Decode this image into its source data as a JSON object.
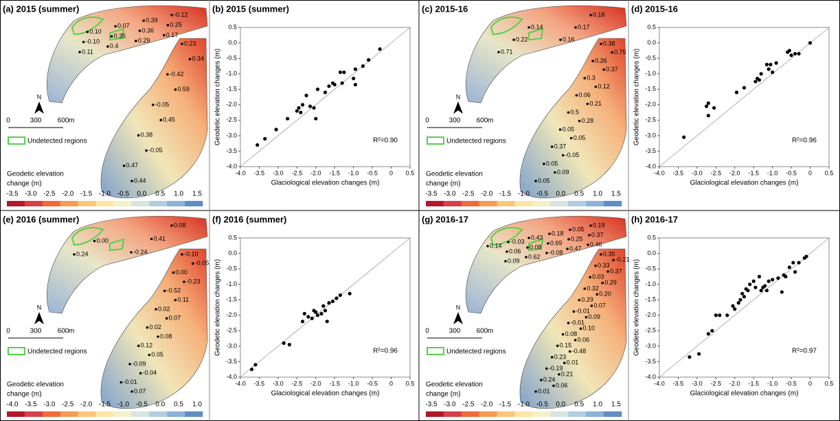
{
  "chart_data": [
    {
      "type": "scatter",
      "title": "(b) 2015 (summer)",
      "x_label": "Glaciological elevation changes (m)",
      "y_label": "Geodetic elevation changes (m)",
      "annotation": "R²=0.90",
      "color": "#000000",
      "x": [
        -3.55,
        -3.35,
        -3.05,
        -2.75,
        -2.5,
        -2.45,
        -2.4,
        -2.35,
        -2.25,
        -2.15,
        -2.05,
        -2.0,
        -1.95,
        -1.75,
        -1.65,
        -1.55,
        -1.5,
        -1.35,
        -1.3,
        -1.25,
        -1.0,
        -0.95,
        -0.95,
        -0.75,
        -0.6,
        -0.3
      ],
      "y": [
        -3.3,
        -3.1,
        -2.8,
        -2.45,
        -2.2,
        -2.1,
        -2.25,
        -2.0,
        -1.7,
        -2.05,
        -2.1,
        -2.45,
        -1.5,
        -1.6,
        -1.4,
        -1.3,
        -1.35,
        -0.95,
        -1.3,
        -0.95,
        -1.15,
        -0.85,
        -1.35,
        -0.75,
        -0.55,
        -0.2
      ],
      "xlim": [
        -4,
        0.5
      ],
      "ylim": [
        -4,
        0.5
      ],
      "xticks": [
        {
          "value": -4,
          "label": "-4.0"
        },
        {
          "value": -3.5,
          "label": "-3.5"
        },
        {
          "value": -3,
          "label": "-3.0"
        },
        {
          "value": -2.5,
          "label": "-2.5"
        },
        {
          "value": -2,
          "label": "-2.0"
        },
        {
          "value": -1.5,
          "label": "-1.5"
        },
        {
          "value": -1,
          "label": "-1.0"
        },
        {
          "value": -0.5,
          "label": "-0.5"
        },
        0,
        0.5
      ],
      "yticks": [
        {
          "value": -4,
          "label": "-4.0"
        },
        {
          "value": -3.5,
          "label": "-3.5"
        },
        {
          "value": -3,
          "label": "-3.0"
        },
        {
          "value": -2.5,
          "label": "-2.5"
        },
        {
          "value": -2,
          "label": "-2.0"
        },
        {
          "value": -1.5,
          "label": "-1.5"
        },
        {
          "value": -1,
          "label": "-1.0"
        },
        {
          "value": -0.5,
          "label": "-0.5"
        },
        {
          "value": 0,
          "label": "0.0"
        },
        0.5
      ]
    },
    {
      "type": "scatter",
      "title": "(d) 2015-16",
      "x_label": "Glaciological elevation changes (m)",
      "y_label": "Geodetic elevation changes (m)",
      "annotation": "R²=0.96",
      "color": "#000000",
      "x": [
        -3.35,
        -2.75,
        -2.7,
        -2.7,
        -2.55,
        -1.95,
        -1.75,
        -1.45,
        -1.4,
        -1.35,
        -1.3,
        -1.15,
        -1.1,
        -1.05,
        -1.0,
        -0.9,
        -0.6,
        -0.5,
        -0.4,
        -0.3,
        0.0,
        -0.55
      ],
      "y": [
        -3.05,
        -2.05,
        -1.95,
        -2.35,
        -2.1,
        -1.6,
        -1.45,
        -1.25,
        -1.15,
        -1.2,
        -1.0,
        -0.7,
        -0.85,
        -0.7,
        -0.95,
        -0.65,
        -0.3,
        -0.4,
        -0.35,
        -0.35,
        0.0,
        -0.25
      ],
      "xlim": [
        -4,
        0.5
      ],
      "ylim": [
        -4,
        0.5
      ],
      "xticks": [
        {
          "value": -4,
          "label": "-4.0"
        },
        {
          "value": -3.5,
          "label": "-3.5"
        },
        {
          "value": -3,
          "label": "-3.0"
        },
        {
          "value": -2.5,
          "label": "-2.5"
        },
        {
          "value": -2,
          "label": "-2.0"
        },
        {
          "value": -1.5,
          "label": "-1.5"
        },
        {
          "value": -1,
          "label": "-1.0"
        },
        {
          "value": -0.5,
          "label": "-0.5"
        },
        0,
        0.5
      ],
      "yticks": [
        {
          "value": -4,
          "label": "-4.0"
        },
        {
          "value": -3.5,
          "label": "-3.5"
        },
        {
          "value": -3,
          "label": "-3.0"
        },
        {
          "value": -2.5,
          "label": "-2.5"
        },
        {
          "value": -2,
          "label": "-2.0"
        },
        {
          "value": -1.5,
          "label": "-1.5"
        },
        {
          "value": -1,
          "label": "-1.0"
        },
        {
          "value": -0.5,
          "label": "-0.5"
        },
        {
          "value": 0,
          "label": "0.0"
        },
        0.5
      ]
    },
    {
      "type": "scatter",
      "title": "(f) 2016 (summer)",
      "x_label": "Glaciological elevation changes (m)",
      "y_label": "Geodetic elevation changes (m)",
      "annotation": "R²=0.96",
      "color": "#000000",
      "x": [
        -3.7,
        -3.6,
        -2.85,
        -2.7,
        -2.35,
        -2.3,
        -2.2,
        -2.1,
        -2.05,
        -1.95,
        -1.85,
        -1.75,
        -1.7,
        -1.65,
        -1.55,
        -1.45,
        -1.35,
        -1.1,
        -2.0,
        -1.8
      ],
      "y": [
        -3.75,
        -3.6,
        -2.9,
        -2.95,
        -2.2,
        -1.95,
        -2.05,
        -2.1,
        -1.85,
        -2.0,
        -1.95,
        -1.85,
        -2.2,
        -1.6,
        -1.55,
        -1.45,
        -1.35,
        -1.3,
        -1.9,
        -1.7
      ],
      "xlim": [
        -4,
        0.5
      ],
      "ylim": [
        -4,
        0.5
      ],
      "xticks": [
        {
          "value": -4,
          "label": "-4.0"
        },
        {
          "value": -3.5,
          "label": "-3.5"
        },
        {
          "value": -3,
          "label": "-3.0"
        },
        {
          "value": -2.5,
          "label": "-2.5"
        },
        {
          "value": -2,
          "label": "-2.0"
        },
        {
          "value": -1.5,
          "label": "-1.5"
        },
        {
          "value": -1,
          "label": "-1.0"
        },
        {
          "value": -0.5,
          "label": "-0.5"
        },
        0,
        0.5
      ],
      "yticks": [
        {
          "value": -4,
          "label": "-4.0"
        },
        {
          "value": -3.5,
          "label": "-3.5"
        },
        {
          "value": -3,
          "label": "-3.0"
        },
        {
          "value": -2.5,
          "label": "-2.5"
        },
        {
          "value": -2,
          "label": "-2.0"
        },
        {
          "value": -1.5,
          "label": "-1.5"
        },
        {
          "value": -1,
          "label": "-1.0"
        },
        {
          "value": -0.5,
          "label": "-0.5"
        },
        {
          "value": 0,
          "label": "0.0"
        },
        0.5
      ]
    },
    {
      "type": "scatter",
      "title": "(h) 2016-17",
      "x_label": "Glaciological elevation changes (m)",
      "y_label": "Geodetic elevation changes (m)",
      "annotation": "R²=0.97",
      "color": "#000000",
      "x": [
        -3.2,
        -2.95,
        -2.7,
        -2.6,
        -2.4,
        -2.2,
        -2.05,
        -2.0,
        -1.85,
        -1.8,
        -1.75,
        -1.7,
        -1.65,
        -1.6,
        -1.5,
        -1.45,
        -1.35,
        -1.3,
        -1.25,
        -1.2,
        -1.15,
        -1.1,
        -1.0,
        -0.85,
        -0.75,
        -0.7,
        -0.65,
        -0.55,
        -0.45,
        -0.4,
        -0.3,
        -0.15,
        -0.1,
        -2.5,
        -1.9
      ],
      "y": [
        -3.35,
        -3.25,
        -2.6,
        -2.5,
        -2.0,
        -2.0,
        -1.7,
        -1.8,
        -1.5,
        -1.3,
        -1.4,
        -1.15,
        -1.2,
        -1.0,
        -0.9,
        -1.1,
        -0.75,
        -1.2,
        -1.1,
        -1.05,
        -1.2,
        -0.9,
        -0.85,
        -0.8,
        -1.25,
        -0.7,
        -0.75,
        -0.45,
        -0.3,
        -0.6,
        -0.3,
        -0.15,
        -0.1,
        -2.0,
        -1.6
      ],
      "xlim": [
        -4,
        0.5
      ],
      "ylim": [
        -4,
        0.5
      ],
      "xticks": [
        {
          "value": -4,
          "label": "-4.0"
        },
        {
          "value": -3.5,
          "label": "-3.5"
        },
        {
          "value": -3,
          "label": "-3.0"
        },
        {
          "value": -2.5,
          "label": "-2.5"
        },
        {
          "value": -2,
          "label": "-2.0"
        },
        {
          "value": -1.5,
          "label": "-1.5"
        },
        {
          "value": -1,
          "label": "-1.0"
        },
        {
          "value": -0.5,
          "label": "-0.5"
        },
        0,
        0.5
      ],
      "yticks": [
        {
          "value": -4,
          "label": "-4.0"
        },
        {
          "value": -3.5,
          "label": "-3.5"
        },
        {
          "value": -3,
          "label": "-3.0"
        },
        {
          "value": -2.5,
          "label": "-2.5"
        },
        {
          "value": -2,
          "label": "-2.0"
        },
        {
          "value": -1.5,
          "label": "-1.5"
        },
        {
          "value": -1,
          "label": "-1.0"
        },
        {
          "value": -0.5,
          "label": "-0.5"
        },
        {
          "value": 0,
          "label": "0.0"
        },
        0.5
      ]
    }
  ],
  "maps": [
    {
      "title": "(a) 2015 (summer)",
      "north": "N",
      "scale_labels": [
        "0",
        "300",
        "600"
      ],
      "scale_unit": "m",
      "legend": "Undetected regions",
      "colorbar_title": [
        "Geodetic elevation",
        "change (m)"
      ],
      "colorbar_labels": [
        "-3.5",
        "-3.0",
        "-2.5",
        "-2.0",
        "-1.5",
        "-1.0",
        "-0.5",
        "0.0",
        "0.5",
        "1.0",
        "1.5"
      ],
      "upper_labels": [
        "-0.12",
        "0.25",
        "0.17",
        "0.39",
        "0.36",
        "0.29",
        "0.07",
        "0.35",
        "0.4",
        "0.10",
        "-0.10",
        "0.11"
      ],
      "lower_labels": [
        "0.23",
        "0.34",
        "-0.42",
        "0.59",
        "-0.05",
        "0.45",
        "0.38",
        "-0.05",
        "0.47",
        "0.44"
      ]
    },
    {
      "title": "(c) 2015-16",
      "north": "N",
      "scale_labels": [
        "0",
        "300",
        "600"
      ],
      "scale_unit": "m",
      "legend": "Undetected regions",
      "colorbar_title": [
        "Geodetic elevation",
        "change (m)"
      ],
      "colorbar_labels": [
        "-3.5",
        "-3.0",
        "-2.5",
        "-2.0",
        "-1.5",
        "-1.0",
        "-0.5",
        "0.0",
        "0.5",
        "1.0",
        "1.5"
      ],
      "upper_labels": [
        "0.18",
        "0.17",
        "0.16",
        "0.14",
        "0.22",
        "0.71"
      ],
      "lower_labels": [
        "0.38",
        "0.75",
        "0.26",
        "0.37",
        "0.3",
        "0.12",
        "0.06",
        "0.21",
        "0.5",
        "0.28",
        "0.05",
        "0.05",
        "0.37",
        "-0.05",
        "0.05",
        "0.09",
        "0.05"
      ]
    },
    {
      "title": "(e) 2016 (summer)",
      "north": "N",
      "scale_labels": [
        "0",
        "300",
        "600"
      ],
      "scale_unit": "m",
      "legend": "Undetected regions",
      "colorbar_title": [
        "Geodetic elevation",
        "change (m)"
      ],
      "colorbar_labels": [
        "-4.0",
        "-3.5",
        "-3.0",
        "-2.5",
        "-2.0",
        "-1.5",
        "-1.0",
        "-0.5",
        "0.0",
        "0.5",
        "1.0"
      ],
      "upper_labels": [
        "0.08",
        "0.41",
        "-0.24",
        "0.00",
        "0.24"
      ],
      "lower_labels": [
        "-0.10",
        "-0.05",
        "0.00",
        "-0.23",
        "-0.52",
        "0.11",
        "0.02",
        "0.07",
        "0.02",
        "0.08",
        "0.12",
        "0.05",
        "-0.09",
        "-0.04",
        "-0.01",
        "0.07"
      ]
    },
    {
      "title": "(g) 2016-17",
      "north": "N",
      "scale_labels": [
        "0",
        "300",
        "600"
      ],
      "scale_unit": "m",
      "legend": "Undetected regions",
      "colorbar_title": [
        "Geodetic elevation",
        "change (m)"
      ],
      "colorbar_labels": [
        "-3.5",
        "-3.0",
        "-2.5",
        "-2.0",
        "-1.5",
        "-1.0",
        "-0.5",
        "0.0",
        "0.5",
        "1.0",
        "1.5"
      ],
      "upper_labels": [
        "0.19",
        "0.37",
        "0.46",
        "0.05",
        "0.25",
        "0.47",
        "0.18",
        "0.69",
        "-0.08",
        "0.43",
        "0.08",
        "0.62",
        "-0.03",
        "0.06",
        "0.09",
        "0.14"
      ],
      "lower_labels": [
        "0.35",
        "-0.21",
        "0.33",
        "0.37",
        "0.03",
        "0.29",
        "0.32",
        "0.20",
        "0.29",
        "0.07",
        "-0.01",
        "0.09",
        "-0.01",
        "0.10",
        "0.08",
        "0.06",
        "0.15",
        "-0.48",
        "0.23",
        "0.01",
        "-0.19",
        "0.21",
        "0.24",
        "0.06",
        "0.01"
      ]
    }
  ]
}
